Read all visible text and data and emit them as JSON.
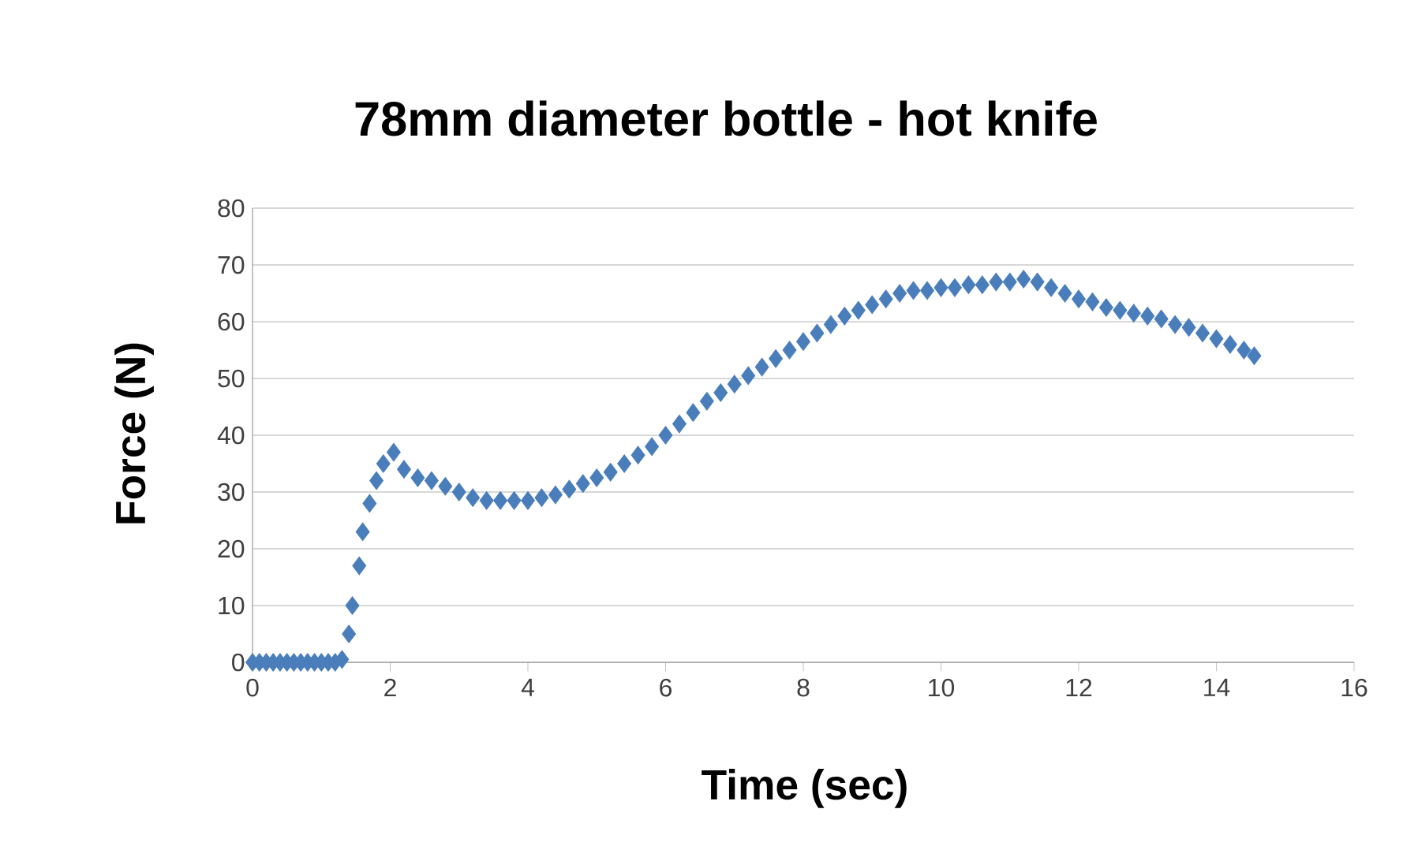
{
  "chart_data": {
    "type": "scatter",
    "title": "78mm diameter bottle - hot knife",
    "xlabel": "Time (sec)",
    "ylabel": "Force (N)",
    "xlim": [
      0,
      16
    ],
    "xticks": [
      0,
      2,
      4,
      6,
      8,
      10,
      12,
      14,
      16
    ],
    "ylim": [
      0,
      80
    ],
    "yticks": [
      0,
      10,
      20,
      30,
      40,
      50,
      60,
      70,
      80
    ],
    "grid": "y",
    "marker": "diamond",
    "series": [
      {
        "color": "#4a7ebb",
        "x": [
          0,
          0.1,
          0.2,
          0.3,
          0.4,
          0.5,
          0.6,
          0.7,
          0.8,
          0.9,
          1.0,
          1.1,
          1.2,
          1.3,
          1.4,
          1.45,
          1.55,
          1.6,
          1.7,
          1.8,
          1.9,
          2.05,
          2.2,
          2.4,
          2.6,
          2.8,
          3.0,
          3.2,
          3.4,
          3.6,
          3.8,
          4.0,
          4.2,
          4.4,
          4.6,
          4.8,
          5.0,
          5.2,
          5.4,
          5.6,
          5.8,
          6.0,
          6.2,
          6.4,
          6.6,
          6.8,
          7.0,
          7.2,
          7.4,
          7.6,
          7.8,
          8.0,
          8.2,
          8.4,
          8.6,
          8.8,
          9.0,
          9.2,
          9.4,
          9.6,
          9.8,
          10.0,
          10.2,
          10.4,
          10.6,
          10.8,
          11.0,
          11.2,
          11.4,
          11.6,
          11.8,
          12.0,
          12.2,
          12.4,
          12.6,
          12.8,
          13.0,
          13.2,
          13.4,
          13.6,
          13.8,
          14.0,
          14.2,
          14.4,
          14.55
        ],
        "values": [
          0,
          0,
          0,
          0,
          0,
          0,
          0,
          0,
          0,
          0,
          0,
          0,
          0,
          0.5,
          5,
          10,
          17,
          23,
          28,
          32,
          35,
          37,
          34,
          32.5,
          32,
          31,
          30,
          29,
          28.5,
          28.5,
          28.5,
          28.5,
          29,
          29.5,
          30.5,
          31.5,
          32.5,
          33.5,
          35,
          36.5,
          38,
          40,
          42,
          44,
          46,
          47.5,
          49,
          50.5,
          52,
          53.5,
          55,
          56.5,
          58,
          59.5,
          61,
          62,
          63,
          64,
          65,
          65.5,
          65.5,
          66,
          66,
          66.5,
          66.5,
          67,
          67,
          67.5,
          67,
          66,
          65,
          64,
          63.5,
          62.5,
          62,
          61.5,
          61,
          60.5,
          59.5,
          59,
          58,
          57,
          56,
          55,
          54
        ]
      }
    ]
  }
}
